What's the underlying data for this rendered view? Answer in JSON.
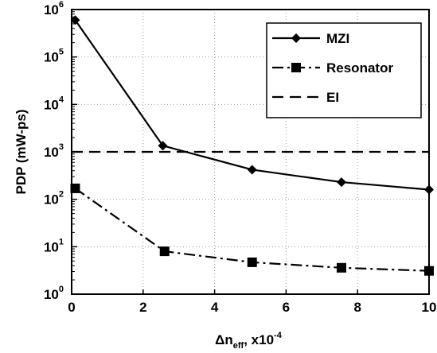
{
  "chart_data": {
    "type": "line",
    "xlabel_main": "Δn",
    "xlabel_sub": "eff",
    "xlabel_rest": ", x10",
    "xlabel_sup": "-4",
    "ylabel": "PDP (mW-ps)",
    "yscale": "log",
    "xlim": [
      0,
      10
    ],
    "ylim": [
      1,
      1000000
    ],
    "x_ticks": [
      "0",
      "2",
      "4",
      "6",
      "8",
      "10"
    ],
    "y_ticks": [
      {
        "base": "10",
        "exp": "0"
      },
      {
        "base": "10",
        "exp": "1"
      },
      {
        "base": "10",
        "exp": "2"
      },
      {
        "base": "10",
        "exp": "3"
      },
      {
        "base": "10",
        "exp": "4"
      },
      {
        "base": "10",
        "exp": "5"
      },
      {
        "base": "10",
        "exp": "6"
      }
    ],
    "grid": "dotted",
    "legend_position": "top-right",
    "series": [
      {
        "name": "MZI",
        "style": "solid",
        "marker": "diamond",
        "x": [
          0.1,
          2.55,
          5.05,
          7.55,
          10.0
        ],
        "y": [
          600000,
          1350,
          420,
          230,
          160
        ]
      },
      {
        "name": "Resonator",
        "style": "dash-dot",
        "marker": "square",
        "x": [
          0.1,
          2.6,
          5.05,
          7.55,
          10.0
        ],
        "y": [
          170,
          8,
          4.7,
          3.6,
          3.1
        ]
      },
      {
        "name": "EI",
        "style": "dashed",
        "marker": "none",
        "x": [
          0,
          10
        ],
        "y": [
          1000,
          1000
        ]
      }
    ]
  }
}
